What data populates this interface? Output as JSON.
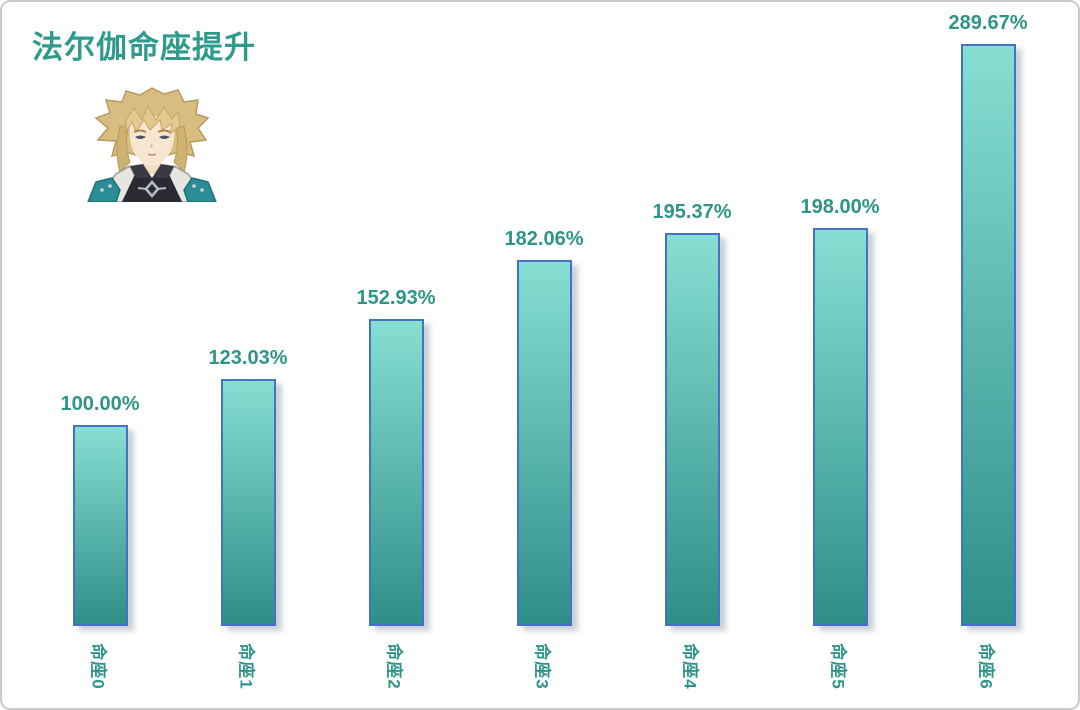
{
  "title": "法尔伽命座提升",
  "icons": {
    "character_portrait": "anime-character-avatar"
  },
  "colors": {
    "title_text": "#2e9b8c",
    "value_label_text": "#2e9588",
    "bar_gradient_top": "#87ded3",
    "bar_gradient_bottom": "#2e8f88",
    "bar_border": "#4472c4",
    "frame_border": "#cbcbcb",
    "background": "#ffffff"
  },
  "chart_data": {
    "type": "bar",
    "title": "法尔伽命座提升",
    "categories": [
      "命座0",
      "命座1",
      "命座2",
      "命座3",
      "命座4",
      "命座5",
      "命座6"
    ],
    "values": [
      100.0,
      123.03,
      152.93,
      182.06,
      195.37,
      198.0,
      289.67
    ],
    "value_labels": [
      "100.00%",
      "123.03%",
      "152.93%",
      "182.06%",
      "195.37%",
      "198.00%",
      "289.67%"
    ],
    "xlabel": "",
    "ylabel": "",
    "ylim": [
      0,
      300
    ],
    "grid": false,
    "legend": "none",
    "axis_labels_rotated_90deg": true,
    "bar_color_top": "#87ded3",
    "bar_color_bottom": "#2e8f88",
    "bar_border_color": "#4472c4",
    "label_color": "#2e9588"
  }
}
